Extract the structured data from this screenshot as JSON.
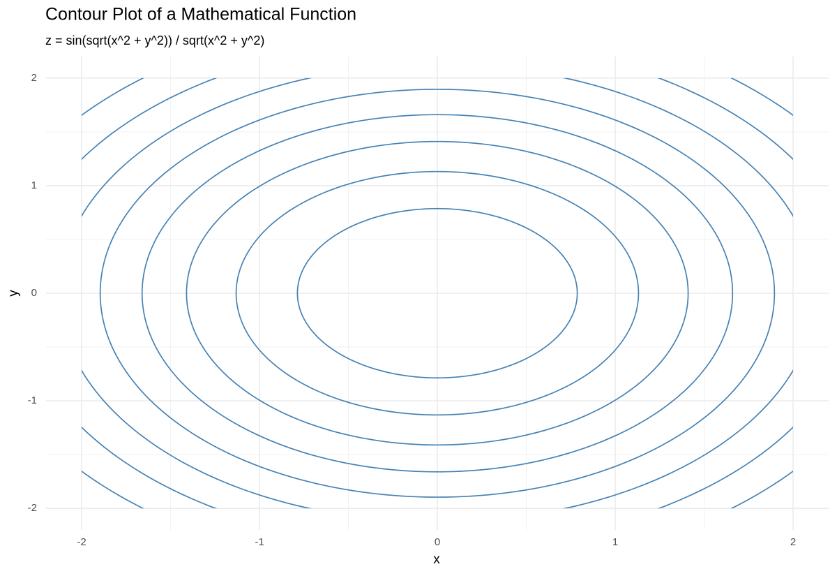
{
  "chart_data": {
    "type": "contour",
    "title": "Contour Plot of a Mathematical Function",
    "subtitle": "z = sin(sqrt(x^2 + y^2)) / sqrt(x^2 + y^2)",
    "x_label": "x",
    "y_label": "y",
    "levels": [
      0.2,
      0.3,
      0.4,
      0.5,
      0.6,
      0.7,
      0.8,
      0.9
    ],
    "color": "#4682b4",
    "data_xrange": [
      -2,
      2
    ],
    "data_yrange": [
      -2,
      2
    ],
    "xlim": [
      -2.2,
      2.2
    ],
    "ylim": [
      -2.2,
      2.2
    ],
    "xticks": [
      -2,
      -1,
      0,
      1,
      2
    ],
    "yticks": [
      -2,
      -1,
      0,
      1,
      2
    ],
    "grid": true
  }
}
